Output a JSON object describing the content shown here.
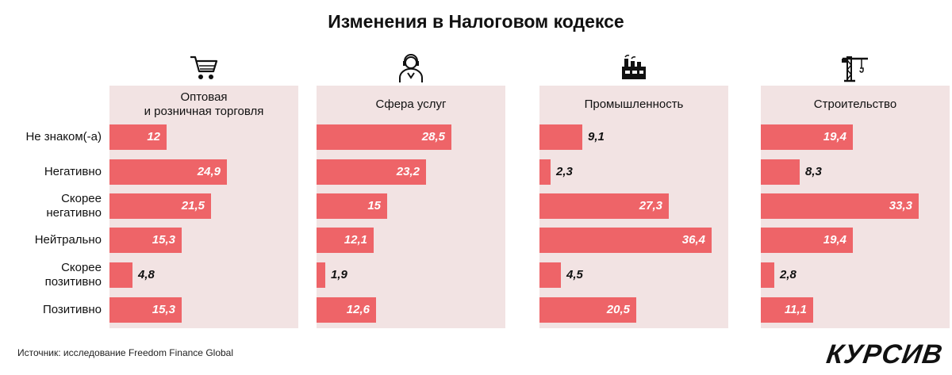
{
  "title": "Изменения в Налоговом кодексе",
  "source": "Источник: исследование Freedom Finance Global",
  "brand": "КУРСИВ",
  "colors": {
    "bar": "#ee6468",
    "panel": "#f2e3e3"
  },
  "icons": [
    "shopping-cart-icon",
    "service-person-icon",
    "factory-icon",
    "construction-crane-icon"
  ],
  "chart_data": {
    "type": "bar",
    "orientation": "horizontal",
    "title": "Изменения в Налоговом кодексе",
    "categories": [
      "Не знаком(-а)",
      "Негативно",
      "Скорее негативно",
      "Нейтрально",
      "Скорее позитивно",
      "Позитивно"
    ],
    "category_labels": [
      [
        "Не знаком(-а)"
      ],
      [
        "Негативно"
      ],
      [
        "Скорее",
        "негативно"
      ],
      [
        "Нейтрально"
      ],
      [
        "Скорее",
        "позитивно"
      ],
      [
        "Позитивно"
      ]
    ],
    "xlim": [
      0,
      40
    ],
    "series": [
      {
        "name": "Оптовая и розничная торговля",
        "title_lines": [
          "Оптовая",
          "и розничная торговля"
        ],
        "values": [
          12,
          24.9,
          21.5,
          15.3,
          4.8,
          15.3
        ],
        "labels": [
          "12",
          "24,9",
          "21,5",
          "15,3",
          "4,8",
          "15,3"
        ]
      },
      {
        "name": "Сфера услуг",
        "title_lines": [
          "Сфера услуг"
        ],
        "values": [
          28.5,
          23.2,
          15,
          12.1,
          1.9,
          12.6
        ],
        "labels": [
          "28,5",
          "23,2",
          "15",
          "12,1",
          "1,9",
          "12,6"
        ]
      },
      {
        "name": "Промышленность",
        "title_lines": [
          "Промышленность"
        ],
        "values": [
          9.1,
          2.3,
          27.3,
          36.4,
          4.5,
          20.5
        ],
        "labels": [
          "9,1",
          "2,3",
          "27,3",
          "36,4",
          "4,5",
          "20,5"
        ]
      },
      {
        "name": "Строительство",
        "title_lines": [
          "Строительство"
        ],
        "values": [
          19.4,
          8.3,
          33.3,
          19.4,
          2.8,
          11.1
        ],
        "labels": [
          "19,4",
          "8,3",
          "33,3",
          "19,4",
          "2,8",
          "11,1"
        ]
      }
    ]
  }
}
